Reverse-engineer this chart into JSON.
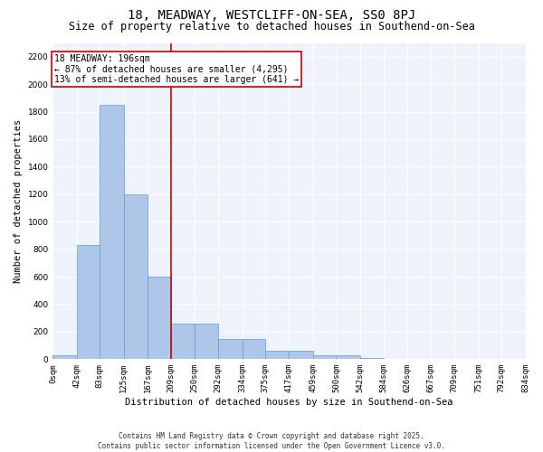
{
  "title1": "18, MEADWAY, WESTCLIFF-ON-SEA, SS0 8PJ",
  "title2": "Size of property relative to detached houses in Southend-on-Sea",
  "xlabel": "Distribution of detached houses by size in Southend-on-Sea",
  "ylabel": "Number of detached properties",
  "bin_edges": [
    0,
    42,
    83,
    125,
    167,
    209,
    250,
    292,
    334,
    375,
    417,
    459,
    500,
    542,
    584,
    626,
    667,
    709,
    751,
    792,
    834
  ],
  "bar_heights": [
    30,
    830,
    1850,
    1200,
    600,
    260,
    260,
    150,
    150,
    60,
    60,
    30,
    30,
    10,
    0,
    0,
    0,
    0,
    0,
    0
  ],
  "bar_color": "#AEC6E8",
  "bar_edge_color": "#5B9BD5",
  "vline_x": 209,
  "vline_color": "#CC0000",
  "annotation_title": "18 MEADWAY: 196sqm",
  "annotation_line1": "← 87% of detached houses are smaller (4,295)",
  "annotation_line2": "13% of semi-detached houses are larger (641) →",
  "annotation_box_color": "#CC0000",
  "ylim": [
    0,
    2300
  ],
  "yticks": [
    0,
    200,
    400,
    600,
    800,
    1000,
    1200,
    1400,
    1600,
    1800,
    2000,
    2200
  ],
  "bg_color": "#EEF3FB",
  "footer1": "Contains HM Land Registry data © Crown copyright and database right 2025.",
  "footer2": "Contains public sector information licensed under the Open Government Licence v3.0.",
  "title1_fontsize": 10,
  "title2_fontsize": 8.5,
  "annotation_fontsize": 7,
  "tick_fontsize": 6.5,
  "label_fontsize": 7.5,
  "footer_fontsize": 5.5
}
